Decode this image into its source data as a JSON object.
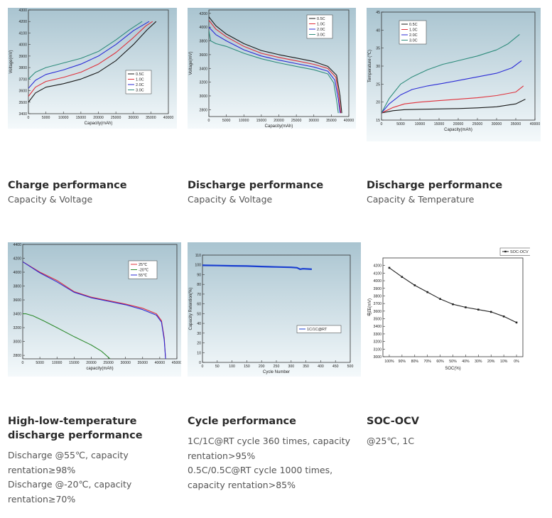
{
  "cards": [
    {
      "title": "Charge performance",
      "desc": [
        "Capacity & Voltage"
      ]
    },
    {
      "title": "Discharge performance",
      "desc": [
        "Capacity & Voltage"
      ]
    },
    {
      "title": "Discharge performance",
      "desc": [
        "Capacity & Temperature"
      ]
    },
    {
      "title": "High-low-temperature discharge performance",
      "desc": [
        "Discharge @55℃, capacity",
        "rentation≥98%",
        "Discharge @-20℃,  capacity",
        "rentation≥70%"
      ]
    },
    {
      "title": "Cycle performance",
      "desc": [
        "1C/1C@RT cycle 360 times, capacity",
        "rentation>95%",
        "0.5C/0.5C@RT cycle 1000 times,",
        "capacity rentation>85%"
      ]
    },
    {
      "title": "SOC-OCV",
      "desc": [
        "@25℃, 1C"
      ]
    }
  ],
  "colors": {
    "panel_top": "#a9c4d0",
    "panel_bottom": "#f4f9fb",
    "series_0_5C": "#1a1a1a",
    "series_1_0C": "#e0303a",
    "series_2_0C": "#2b2bd6",
    "series_3_0C": "#2f8c7c",
    "series_25C": "#e0303a",
    "series_minus20C": "#2e8b2e",
    "series_55C": "#2b2bd6",
    "cycle_series": "#1a3fd0"
  },
  "chart_data": [
    {
      "type": "line",
      "xlabel": "Capacity(mAh)",
      "ylabel": "Voltage(mV)",
      "xlim": [
        0,
        40000
      ],
      "ylim": [
        3400,
        4300
      ],
      "xticks": [
        0,
        5000,
        10000,
        15000,
        20000,
        25000,
        30000,
        35000,
        40000
      ],
      "yticks": [
        3400,
        3500,
        3600,
        3700,
        3800,
        3900,
        4000,
        4100,
        4200,
        4300
      ],
      "legend_position": "right",
      "series": [
        {
          "name": "0.5C",
          "color": "#1a1a1a",
          "x": [
            0,
            2000,
            5000,
            10000,
            15000,
            20000,
            25000,
            30000,
            34000,
            36500
          ],
          "y": [
            3500,
            3580,
            3630,
            3660,
            3700,
            3760,
            3860,
            4000,
            4130,
            4200
          ]
        },
        {
          "name": "1.0C",
          "color": "#e0303a",
          "x": [
            0,
            2000,
            5000,
            10000,
            15000,
            20000,
            25000,
            30000,
            33500,
            35500
          ],
          "y": [
            3550,
            3630,
            3680,
            3715,
            3760,
            3830,
            3930,
            4060,
            4160,
            4200
          ]
        },
        {
          "name": "2.0C",
          "color": "#2b2bd6",
          "x": [
            0,
            2000,
            5000,
            10000,
            15000,
            20000,
            25000,
            30000,
            34500
          ],
          "y": [
            3620,
            3690,
            3740,
            3780,
            3830,
            3900,
            4000,
            4120,
            4200
          ]
        },
        {
          "name": "3.0C",
          "color": "#2f8c7c",
          "x": [
            0,
            2000,
            5000,
            10000,
            15000,
            20000,
            25000,
            29000,
            32500
          ],
          "y": [
            3700,
            3760,
            3800,
            3840,
            3880,
            3940,
            4040,
            4130,
            4200
          ]
        }
      ]
    },
    {
      "type": "line",
      "xlabel": "Capacity(mAh)",
      "ylabel": "Voltage(mV)",
      "xlim": [
        0,
        40000
      ],
      "ylim": [
        2700,
        4250
      ],
      "xticks": [
        0,
        5000,
        10000,
        15000,
        20000,
        25000,
        30000,
        35000,
        40000
      ],
      "yticks": [
        2800,
        3000,
        3200,
        3400,
        3600,
        3800,
        4000,
        4200
      ],
      "legend_position": "top-right",
      "series": [
        {
          "name": "0.5C",
          "color": "#1a1a1a",
          "x": [
            0,
            2000,
            5000,
            10000,
            15000,
            20000,
            25000,
            30000,
            34000,
            36500,
            37500,
            38000
          ],
          "y": [
            4150,
            4020,
            3900,
            3760,
            3660,
            3600,
            3550,
            3500,
            3430,
            3300,
            3000,
            2750
          ]
        },
        {
          "name": "1.0C",
          "color": "#e0303a",
          "x": [
            0,
            2000,
            5000,
            10000,
            15000,
            20000,
            25000,
            30000,
            34000,
            36300,
            37200,
            37700
          ],
          "y": [
            4100,
            3970,
            3860,
            3720,
            3620,
            3560,
            3510,
            3460,
            3400,
            3270,
            2980,
            2750
          ]
        },
        {
          "name": "2.0C",
          "color": "#2b2bd6",
          "x": [
            0,
            2000,
            5000,
            10000,
            15000,
            20000,
            25000,
            30000,
            34000,
            36000,
            37000,
            37500
          ],
          "y": [
            4000,
            3890,
            3800,
            3670,
            3580,
            3520,
            3470,
            3420,
            3360,
            3230,
            2950,
            2750
          ]
        },
        {
          "name": "3.0C",
          "color": "#2f8c7c",
          "x": [
            0,
            500,
            2000,
            5000,
            10000,
            15000,
            20000,
            25000,
            30000,
            34000,
            35700,
            36600,
            37000
          ],
          "y": [
            3950,
            3800,
            3760,
            3720,
            3620,
            3540,
            3480,
            3430,
            3380,
            3320,
            3190,
            2900,
            2750
          ]
        }
      ]
    },
    {
      "type": "line",
      "xlabel": "Capacity(mAh)",
      "ylabel": "Temperature (℃)",
      "xlim": [
        0,
        40000
      ],
      "ylim": [
        15,
        45
      ],
      "xticks": [
        0,
        5000,
        10000,
        15000,
        20000,
        25000,
        30000,
        35000,
        40000
      ],
      "yticks": [
        15,
        20,
        25,
        30,
        35,
        40,
        45
      ],
      "legend_position": "top-left",
      "series": [
        {
          "name": "0.5C",
          "color": "#1a1a1a",
          "x": [
            0,
            3000,
            6000,
            10000,
            15000,
            20000,
            25000,
            30000,
            35000,
            37500
          ],
          "y": [
            17,
            17.6,
            17.9,
            18,
            18.1,
            18.2,
            18.4,
            18.7,
            19.5,
            20.8
          ]
        },
        {
          "name": "1.0C",
          "color": "#e0303a",
          "x": [
            0,
            3000,
            6000,
            10000,
            15000,
            20000,
            25000,
            30000,
            35000,
            37000
          ],
          "y": [
            17,
            18.5,
            19.5,
            20,
            20.4,
            20.8,
            21.2,
            21.8,
            22.8,
            24.5
          ]
        },
        {
          "name": "2.0C",
          "color": "#2b2bd6",
          "x": [
            0,
            2000,
            5000,
            8000,
            12000,
            16000,
            20000,
            25000,
            30000,
            34000,
            36500
          ],
          "y": [
            17,
            19.5,
            22,
            23.5,
            24.5,
            25.2,
            26,
            27,
            28,
            29.5,
            31.5
          ]
        },
        {
          "name": "3.0C",
          "color": "#2f8c7c",
          "x": [
            0,
            2000,
            5000,
            8000,
            12000,
            16000,
            20000,
            25000,
            30000,
            33000,
            36000
          ],
          "y": [
            17,
            21,
            25,
            27,
            29,
            30.5,
            31.5,
            32.8,
            34.5,
            36.2,
            38.8
          ]
        }
      ]
    },
    {
      "type": "line",
      "xlabel": "capacity(mAh)",
      "ylabel": "",
      "xlim": [
        0,
        45000
      ],
      "ylim": [
        2750,
        4400
      ],
      "xticks": [
        0,
        5000,
        10000,
        15000,
        20000,
        25000,
        30000,
        35000,
        40000,
        45000
      ],
      "yticks": [
        2800,
        3000,
        3200,
        3400,
        3600,
        3800,
        4000,
        4200,
        4400
      ],
      "legend_position": "top-right",
      "series": [
        {
          "name": "25℃",
          "color": "#e0303a",
          "x": [
            0,
            5000,
            10000,
            15000,
            20000,
            25000,
            30000,
            35000,
            39000,
            40500,
            41300,
            41700
          ],
          "y": [
            4150,
            4000,
            3880,
            3720,
            3640,
            3590,
            3540,
            3480,
            3400,
            3300,
            3050,
            2750
          ]
        },
        {
          "name": "-20℃",
          "color": "#2e8b2e",
          "x": [
            0,
            1000,
            3000,
            6000,
            10000,
            15000,
            20000,
            23000,
            25500
          ],
          "y": [
            3400,
            3400,
            3370,
            3300,
            3200,
            3070,
            2950,
            2860,
            2750
          ]
        },
        {
          "name": "55℃",
          "color": "#2b2bd6",
          "x": [
            0,
            5000,
            10000,
            15000,
            20000,
            25000,
            30000,
            35000,
            39000,
            40500,
            41300,
            41700
          ],
          "y": [
            4150,
            3990,
            3860,
            3710,
            3630,
            3580,
            3530,
            3460,
            3380,
            3280,
            3020,
            2750
          ]
        }
      ]
    },
    {
      "type": "line",
      "xlabel": "Cycle Number",
      "ylabel": "Capacity Retention(%)",
      "xlim": [
        0,
        500
      ],
      "ylim": [
        0,
        110
      ],
      "xticks": [
        0,
        50,
        100,
        150,
        200,
        250,
        300,
        350,
        400,
        450,
        500
      ],
      "yticks": [
        0,
        10,
        20,
        30,
        40,
        50,
        60,
        70,
        80,
        90,
        100,
        110
      ],
      "legend_position": "right",
      "series": [
        {
          "name": "1C/1C@RT",
          "color": "#1a3fd0",
          "x": [
            0,
            50,
            100,
            150,
            200,
            250,
            300,
            320,
            330,
            340,
            370
          ],
          "y": [
            99.5,
            99.3,
            99,
            98.8,
            98.3,
            97.8,
            97.5,
            97,
            95.5,
            96,
            95.5
          ]
        }
      ]
    },
    {
      "type": "line",
      "xlabel": "SOC(%)",
      "ylabel": "电压(mV)",
      "ylim": [
        3000,
        4300
      ],
      "yticks": [
        3000,
        3100,
        3200,
        3300,
        3400,
        3500,
        3600,
        3700,
        3800,
        3900,
        4000,
        4100,
        4200
      ],
      "categories": [
        "100%",
        "90%",
        "80%",
        "70%",
        "60%",
        "50%",
        "40%",
        "30%",
        "20%",
        "10%",
        "0%"
      ],
      "legend_position": "top-right",
      "series": [
        {
          "name": "SOC-OCV",
          "color": "#222222",
          "values": [
            4170,
            4050,
            3940,
            3850,
            3760,
            3690,
            3650,
            3620,
            3590,
            3530,
            3450
          ]
        }
      ]
    }
  ]
}
